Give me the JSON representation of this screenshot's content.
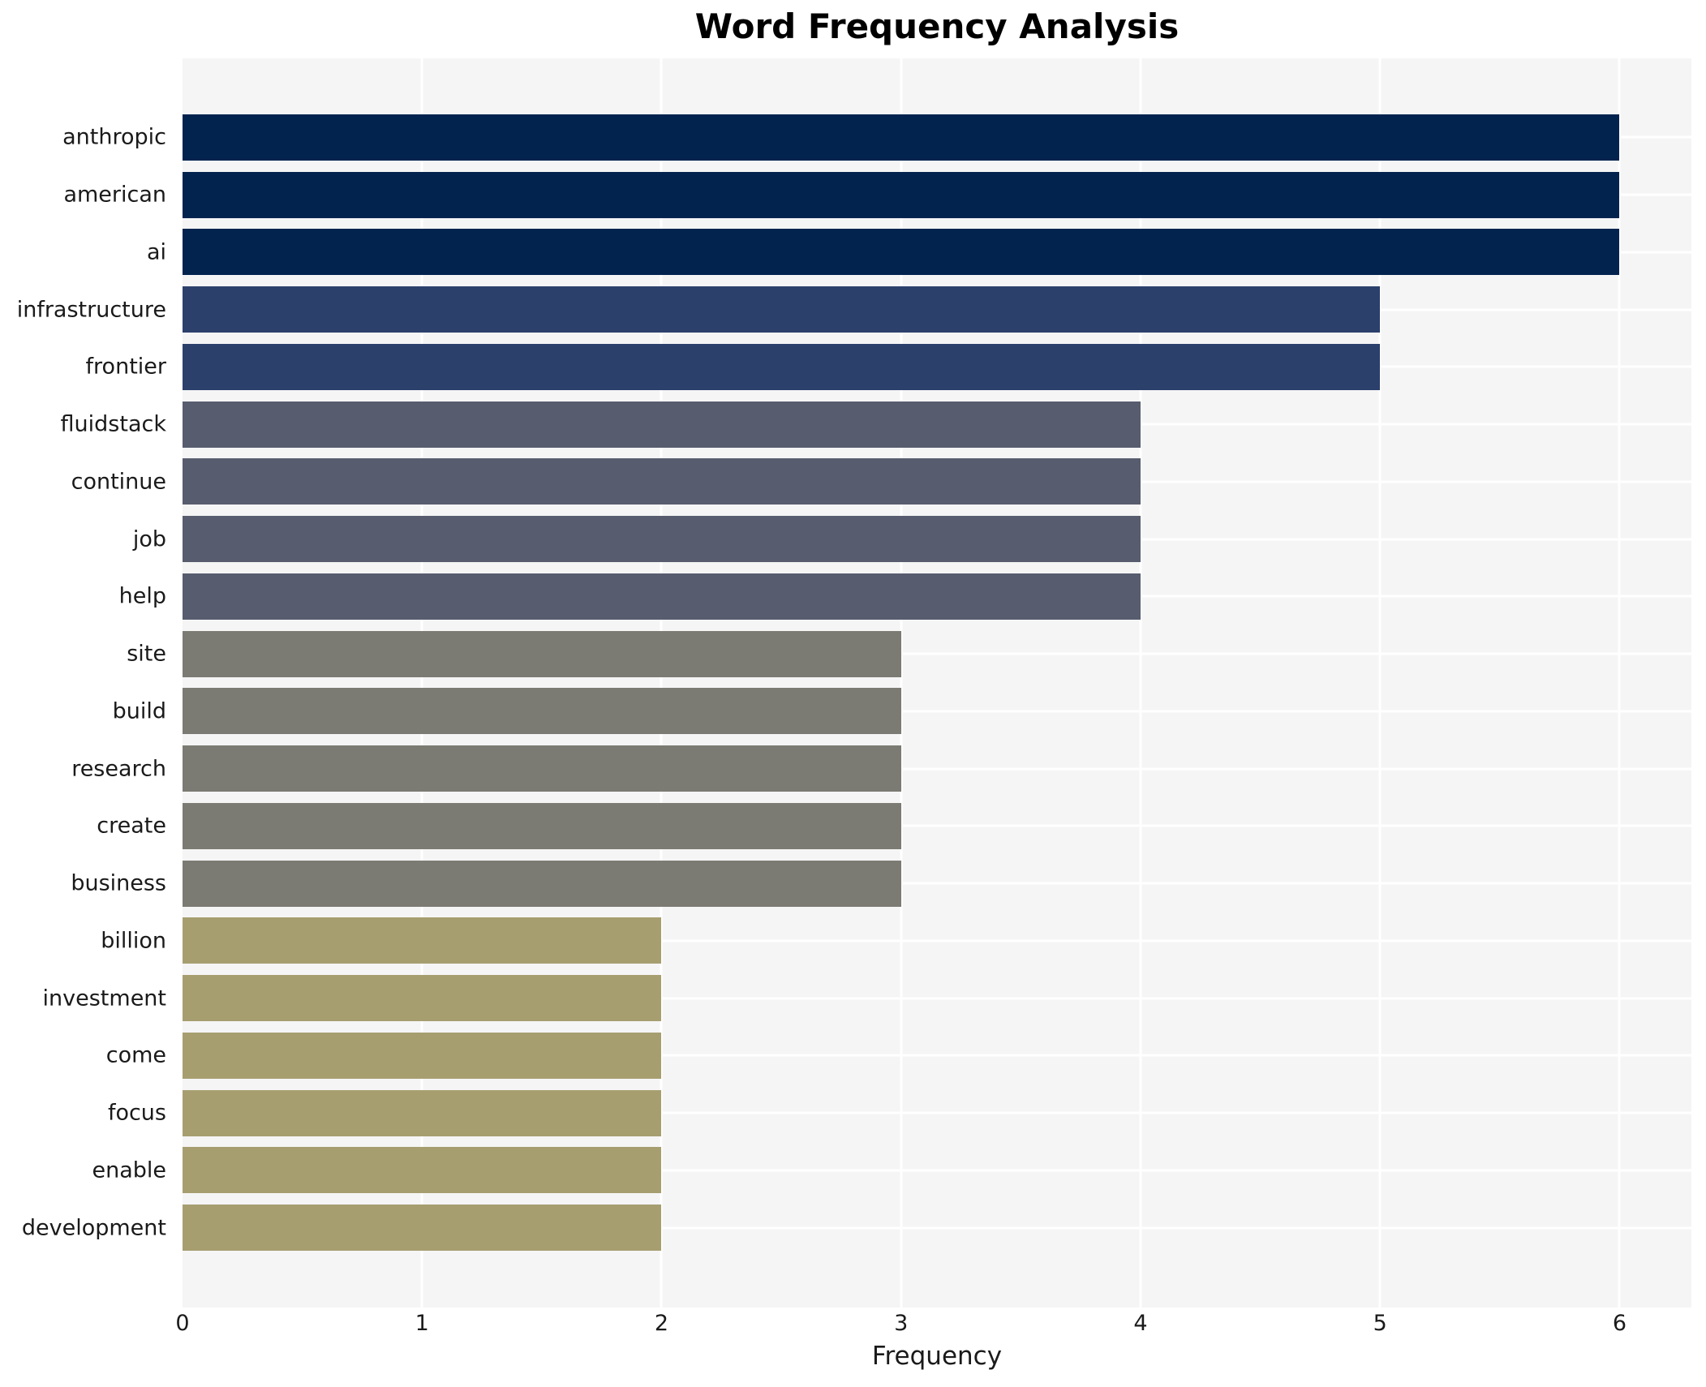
{
  "chart_data": {
    "type": "bar",
    "orientation": "horizontal",
    "title": "Word Frequency Analysis",
    "xlabel": "Frequency",
    "ylabel": "",
    "categories": [
      "anthropic",
      "american",
      "ai",
      "infrastructure",
      "frontier",
      "fluidstack",
      "continue",
      "job",
      "help",
      "site",
      "build",
      "research",
      "create",
      "business",
      "billion",
      "investment",
      "come",
      "focus",
      "enable",
      "development"
    ],
    "values": [
      6,
      6,
      6,
      5,
      5,
      4,
      4,
      4,
      4,
      3,
      3,
      3,
      3,
      3,
      2,
      2,
      2,
      2,
      2,
      2
    ],
    "bar_colors": [
      "#02234e",
      "#02234e",
      "#02234e",
      "#2c406c",
      "#2c406c",
      "#575d6e",
      "#575d6e",
      "#575d6e",
      "#575d6e",
      "#7c7b73",
      "#7c7b73",
      "#7c7b73",
      "#7c7b73",
      "#7c7b73",
      "#a79e70",
      "#a79e70",
      "#a79e70",
      "#a79e70",
      "#a79e70",
      "#a79e70"
    ],
    "xticks": [
      0,
      1,
      2,
      3,
      4,
      5,
      6
    ],
    "xlim": [
      0,
      6.3
    ],
    "grid": true,
    "legend": "none",
    "plot_bg": "#f5f5f6",
    "grid_color": "#ffffff"
  }
}
